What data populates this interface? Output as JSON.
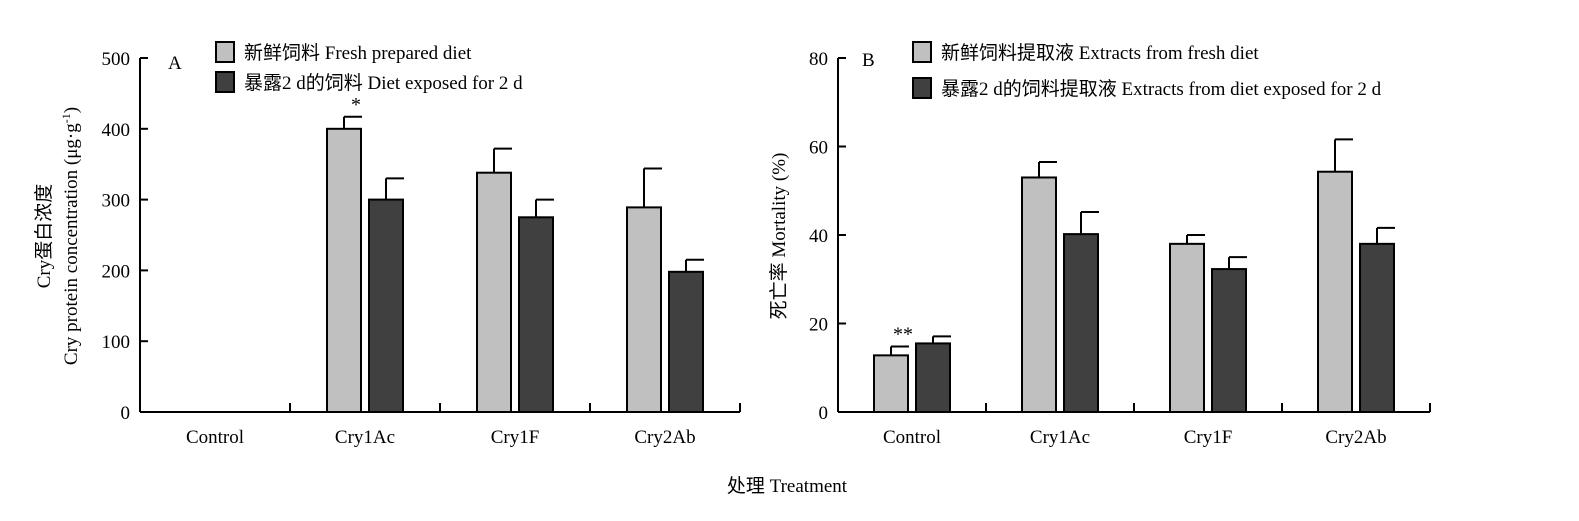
{
  "xlabel": "处理 Treatment",
  "colors": {
    "fresh": "#c0c0c0",
    "exposed": "#404040",
    "axis": "#000000"
  },
  "chart_data": [
    {
      "type": "bar",
      "panel_label": "A",
      "categories": [
        "Control",
        "Cry1Ac",
        "Cry1F",
        "Cry2Ab"
      ],
      "ylabel_line1": "Cry蛋白浓度",
      "ylabel_line2_prefix": "Cry protein concentration (μg·g",
      "ylabel_sup": "-1",
      "ylabel_line2_suffix": ")",
      "ylim": [
        0,
        500
      ],
      "yticks": [
        "0",
        "100",
        "200",
        "300",
        "400",
        "500"
      ],
      "legend_position": "top-left",
      "series": [
        {
          "name": "新鲜饲料 Fresh prepared diet",
          "values": [
            0,
            400,
            338,
            289
          ],
          "errors": [
            0,
            17,
            34,
            55
          ]
        },
        {
          "name": "暴露2 d的饲料 Diet exposed for 2 d",
          "values": [
            0,
            300,
            275,
            198
          ],
          "errors": [
            0,
            30,
            25,
            17
          ]
        }
      ],
      "annotations": [
        {
          "text": "*",
          "category": "Cry1Ac",
          "series": 0
        }
      ]
    },
    {
      "type": "bar",
      "panel_label": "B",
      "categories": [
        "Control",
        "Cry1Ac",
        "Cry1F",
        "Cry2Ab"
      ],
      "ylabel": "死亡率 Mortality (%)",
      "ylim": [
        0,
        80
      ],
      "yticks": [
        "0",
        "20",
        "40",
        "60",
        "80"
      ],
      "legend_position": "top-left",
      "series": [
        {
          "name": "新鲜饲料提取液 Extracts from fresh diet",
          "values": [
            12.8,
            53,
            38,
            54.3
          ],
          "errors": [
            2,
            3.5,
            2,
            7.3
          ]
        },
        {
          "name": "暴露2 d的饲料提取液 Extracts from diet exposed for 2 d",
          "values": [
            15.5,
            40.2,
            32.3,
            38
          ],
          "errors": [
            1.6,
            5,
            2.7,
            3.6
          ]
        }
      ],
      "annotations": [
        {
          "text": "**",
          "category": "Control",
          "series": 0
        }
      ]
    }
  ]
}
